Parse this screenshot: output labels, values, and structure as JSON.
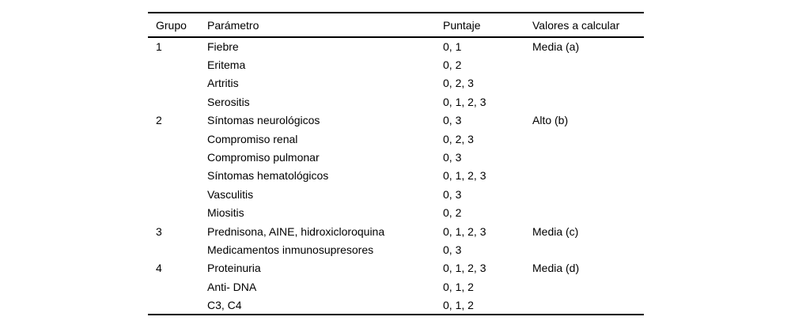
{
  "page": {
    "background": "#ffffff",
    "text_color": "#000000",
    "rule_color": "#000000"
  },
  "table": {
    "columns": [
      "Grupo",
      "Parámetro",
      "Puntaje",
      "Valores a calcular"
    ],
    "rows": [
      {
        "grupo": "1",
        "parametro": "Fiebre",
        "puntaje": "0, 1",
        "valores": "Media (a)"
      },
      {
        "grupo": "",
        "parametro": "Eritema",
        "puntaje": "0, 2",
        "valores": ""
      },
      {
        "grupo": "",
        "parametro": "Artritis",
        "puntaje": "0, 2, 3",
        "valores": ""
      },
      {
        "grupo": "",
        "parametro": "Serositis",
        "puntaje": "0, 1, 2, 3",
        "valores": ""
      },
      {
        "grupo": "2",
        "parametro": "Síntomas neurológicos",
        "puntaje": "0, 3",
        "valores": "Alto (b)"
      },
      {
        "grupo": "",
        "parametro": "Compromiso renal",
        "puntaje": "0, 2, 3",
        "valores": ""
      },
      {
        "grupo": "",
        "parametro": "Compromiso pulmonar",
        "puntaje": "0, 3",
        "valores": ""
      },
      {
        "grupo": "",
        "parametro": "Síntomas hematológicos",
        "puntaje": "0, 1, 2, 3",
        "valores": ""
      },
      {
        "grupo": "",
        "parametro": "Vasculitis",
        "puntaje": "0, 3",
        "valores": ""
      },
      {
        "grupo": "",
        "parametro": "Miositis",
        "puntaje": "0, 2",
        "valores": ""
      },
      {
        "grupo": "3",
        "parametro": "Prednisona, AINE, hidroxicloroquina",
        "puntaje": "0, 1, 2, 3",
        "valores": "Media (c)"
      },
      {
        "grupo": "",
        "parametro": "Medicamentos inmunosupresores",
        "puntaje": "0, 3",
        "valores": ""
      },
      {
        "grupo": "4",
        "parametro": "Proteinuria",
        "puntaje": "0, 1, 2, 3",
        "valores": "Media (d)"
      },
      {
        "grupo": "",
        "parametro": "Anti- DNA",
        "puntaje": "0, 1, 2",
        "valores": ""
      },
      {
        "grupo": "",
        "parametro": "C3, C4",
        "puntaje": "0, 1, 2",
        "valores": ""
      }
    ]
  }
}
